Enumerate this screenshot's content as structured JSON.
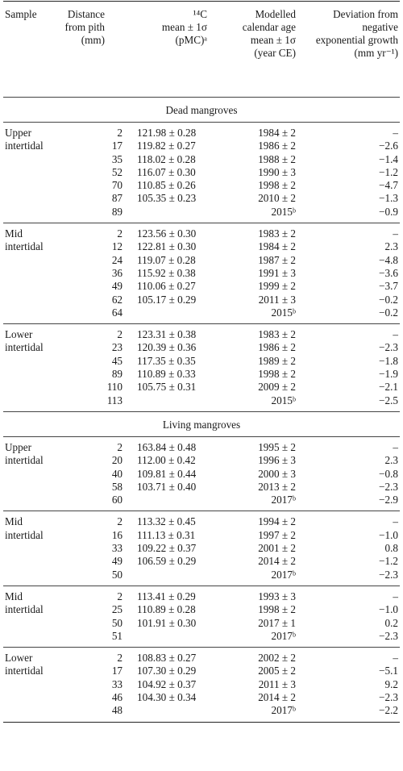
{
  "header": {
    "sample": "Sample",
    "distance": [
      "Distance",
      "from pith",
      "(mm)"
    ],
    "c14": [
      "¹⁴C",
      "mean ± 1σ",
      "(pMC)ᵃ"
    ],
    "age": [
      "Modelled",
      "calendar age",
      "mean ± 1σ",
      "(year CE)"
    ],
    "deviation": [
      "Deviation from",
      "negative",
      "exponential growth",
      "(mm yr⁻¹)"
    ]
  },
  "sections": [
    {
      "title": "Dead mangroves",
      "groups": [
        {
          "label": [
            "Upper",
            "intertidal"
          ],
          "rows": [
            {
              "d": "2",
              "c14": "121.98 ± 0.28",
              "age": "1984 ± 2",
              "dev": "–"
            },
            {
              "d": "17",
              "c14": "119.82 ± 0.27",
              "age": "1986 ± 2",
              "dev": "−2.6"
            },
            {
              "d": "35",
              "c14": "118.02 ± 0.28",
              "age": "1988 ± 2",
              "dev": "−1.4"
            },
            {
              "d": "52",
              "c14": "116.07 ± 0.30",
              "age": "1990 ± 3",
              "dev": "−1.2"
            },
            {
              "d": "70",
              "c14": "110.85 ± 0.26",
              "age": "1998 ± 2",
              "dev": "−4.7"
            },
            {
              "d": "87",
              "c14": "105.35 ± 0.23",
              "age": "2010 ± 2",
              "dev": "−1.3"
            },
            {
              "d": "89",
              "c14": "",
              "age": "2015ᵇ",
              "dev": "−0.9"
            }
          ]
        },
        {
          "label": [
            "Mid",
            "intertidal"
          ],
          "rows": [
            {
              "d": "2",
              "c14": "123.56 ± 0.30",
              "age": "1983 ± 2",
              "dev": "–"
            },
            {
              "d": "12",
              "c14": "122.81 ± 0.30",
              "age": "1984 ± 2",
              "dev": "2.3"
            },
            {
              "d": "24",
              "c14": "119.07 ± 0.28",
              "age": "1987 ± 2",
              "dev": "−4.8"
            },
            {
              "d": "36",
              "c14": "115.92 ± 0.38",
              "age": "1991 ± 3",
              "dev": "−3.6"
            },
            {
              "d": "49",
              "c14": "110.06 ± 0.27",
              "age": "1999 ± 2",
              "dev": "−3.7"
            },
            {
              "d": "62",
              "c14": "105.17 ± 0.29",
              "age": "2011 ± 3",
              "dev": "−0.2"
            },
            {
              "d": "64",
              "c14": "",
              "age": "2015ᵇ",
              "dev": "−0.2"
            }
          ]
        },
        {
          "label": [
            "Lower",
            "intertidal"
          ],
          "rows": [
            {
              "d": "2",
              "c14": "123.31 ± 0.38",
              "age": "1983 ± 2",
              "dev": "–"
            },
            {
              "d": "23",
              "c14": "120.39 ± 0.36",
              "age": "1986 ± 2",
              "dev": "−2.3"
            },
            {
              "d": "45",
              "c14": "117.35 ± 0.35",
              "age": "1989 ± 2",
              "dev": "−1.8"
            },
            {
              "d": "89",
              "c14": "110.89 ± 0.33",
              "age": "1998 ± 2",
              "dev": "−1.9"
            },
            {
              "d": "110",
              "c14": "105.75 ± 0.31",
              "age": "2009 ± 2",
              "dev": "−2.1"
            },
            {
              "d": "113",
              "c14": "",
              "age": "2015ᵇ",
              "dev": "−2.5"
            }
          ]
        }
      ]
    },
    {
      "title": "Living mangroves",
      "groups": [
        {
          "label": [
            "Upper",
            "intertidal"
          ],
          "rows": [
            {
              "d": "2",
              "c14": "163.84 ± 0.48",
              "age": "1995 ± 2",
              "dev": "–"
            },
            {
              "d": "20",
              "c14": "112.00 ± 0.42",
              "age": "1996 ± 3",
              "dev": "2.3"
            },
            {
              "d": "40",
              "c14": "109.81 ± 0.44",
              "age": "2000 ± 3",
              "dev": "−0.8"
            },
            {
              "d": "58",
              "c14": "103.71 ± 0.40",
              "age": "2013 ± 2",
              "dev": "−2.3"
            },
            {
              "d": "60",
              "c14": "",
              "age": "2017ᵇ",
              "dev": "−2.9"
            }
          ]
        },
        {
          "label": [
            "Mid",
            "intertidal"
          ],
          "rows": [
            {
              "d": "2",
              "c14": "113.32 ± 0.45",
              "age": "1994 ± 2",
              "dev": "–"
            },
            {
              "d": "16",
              "c14": "111.13 ± 0.31",
              "age": "1997 ± 2",
              "dev": "−1.0"
            },
            {
              "d": "33",
              "c14": "109.22 ± 0.37",
              "age": "2001 ± 2",
              "dev": "0.8"
            },
            {
              "d": "49",
              "c14": "106.59 ± 0.29",
              "age": "2014 ± 2",
              "dev": "−1.2"
            },
            {
              "d": "50",
              "c14": "",
              "age": "2017ᵇ",
              "dev": "−2.3"
            }
          ]
        },
        {
          "label": [
            "Mid",
            "intertidal"
          ],
          "rows": [
            {
              "d": "2",
              "c14": "113.41 ± 0.29",
              "age": "1993 ± 3",
              "dev": "–"
            },
            {
              "d": "25",
              "c14": "110.89 ± 0.28",
              "age": "1998 ± 2",
              "dev": "−1.0"
            },
            {
              "d": "50",
              "c14": "101.91 ± 0.30",
              "age": "2017 ± 1",
              "dev": "0.2"
            },
            {
              "d": "51",
              "c14": "",
              "age": "2017ᵇ",
              "dev": "−2.3"
            }
          ]
        },
        {
          "label": [
            "Lower",
            "intertidal"
          ],
          "rows": [
            {
              "d": "2",
              "c14": "108.83 ± 0.27",
              "age": "2002 ± 2",
              "dev": "–"
            },
            {
              "d": "17",
              "c14": "107.30 ± 0.29",
              "age": "2005 ± 2",
              "dev": "−5.1"
            },
            {
              "d": "33",
              "c14": "104.92 ± 0.37",
              "age": "2011 ± 3",
              "dev": "9.2"
            },
            {
              "d": "46",
              "c14": "104.30 ± 0.34",
              "age": "2014 ± 2",
              "dev": "−2.3"
            },
            {
              "d": "48",
              "c14": "",
              "age": "2017ᵇ",
              "dev": "−2.2"
            }
          ]
        }
      ]
    }
  ]
}
